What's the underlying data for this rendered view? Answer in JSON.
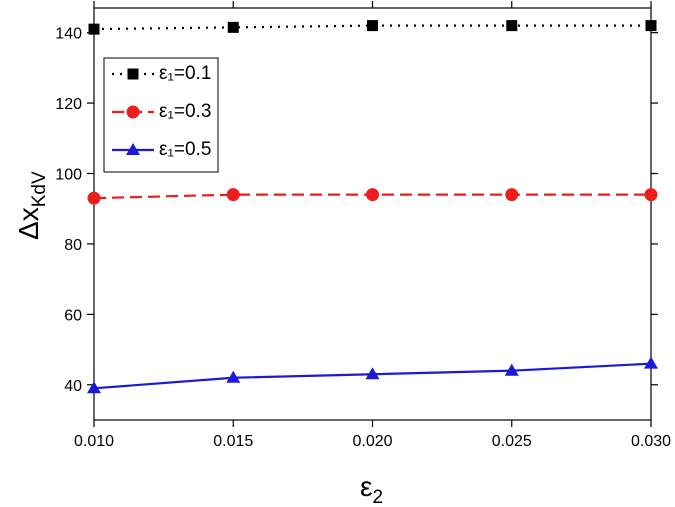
{
  "chart_data": {
    "type": "line",
    "x_label": {
      "main": "ε",
      "sub": "2"
    },
    "y_label": {
      "main": "Δx",
      "sub": "KdV"
    },
    "x": [
      0.01,
      0.015,
      0.02,
      0.025,
      0.03
    ],
    "xlim": [
      0.01,
      0.03
    ],
    "xticks": [
      {
        "value": 0.01,
        "label": "0.010"
      },
      {
        "value": 0.015,
        "label": "0.015"
      },
      {
        "value": 0.02,
        "label": "0.020"
      },
      {
        "value": 0.025,
        "label": "0.025"
      },
      {
        "value": 0.03,
        "label": "0.030"
      }
    ],
    "ylim": [
      30,
      147
    ],
    "yticks": [
      40,
      60,
      80,
      100,
      120,
      140
    ],
    "legend": "upper left",
    "series": [
      {
        "name": "ε₁=0.1",
        "color": "#000000",
        "marker": "square",
        "line": "dotted",
        "values": [
          141,
          141.5,
          142,
          142,
          142
        ]
      },
      {
        "name": "ε₁=0.3",
        "color": "#ee1c1c",
        "marker": "circle",
        "line": "dashed",
        "values": [
          93,
          94,
          94,
          94,
          94
        ]
      },
      {
        "name": "ε₁=0.5",
        "color": "#1a1ad8",
        "marker": "triangle",
        "line": "solid",
        "values": [
          39,
          42,
          43,
          44,
          46
        ]
      }
    ]
  }
}
